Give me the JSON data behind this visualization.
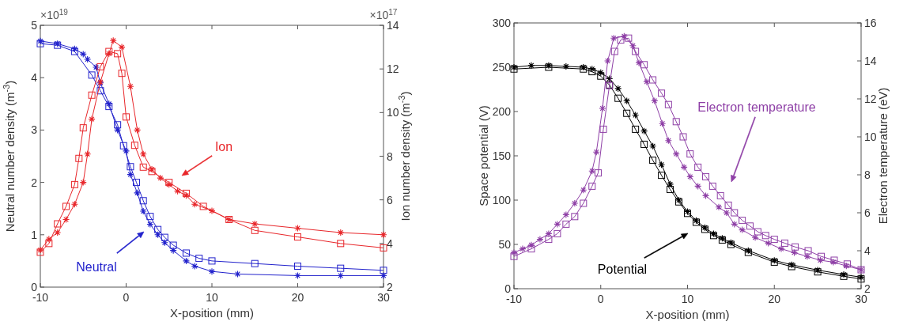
{
  "chart_data": [
    {
      "type": "line",
      "xlabel": "X-position (mm)",
      "ylabel": "Neutral number density (m$^{-3}$)",
      "y2label": "Ion number density (m$^{-3}$)",
      "xlim": [
        -10,
        30
      ],
      "xticks": [
        -10,
        0,
        10,
        20,
        30
      ],
      "ylim": [
        0,
        5
      ],
      "yticks": [
        0,
        1,
        2,
        3,
        4,
        5
      ],
      "y2lim": [
        2,
        14
      ],
      "y2ticks": [
        2,
        4,
        6,
        8,
        10,
        12,
        14
      ],
      "series": [
        {
          "color": "#2222cc",
          "marker": "cross",
          "x": [
            -10,
            -8,
            -6,
            -5,
            -4.5,
            -3.5,
            -3,
            -2,
            -1,
            0,
            0.5,
            1.3,
            2,
            2.8,
            3.7,
            4.5,
            5.5,
            7,
            8,
            10,
            13,
            20,
            25,
            30
          ],
          "values": [
            4.7,
            4.65,
            4.55,
            4.45,
            4.35,
            4.2,
            3.9,
            3.5,
            3.0,
            2.6,
            2.15,
            1.8,
            1.45,
            1.2,
            1.0,
            0.85,
            0.7,
            0.5,
            0.4,
            0.3,
            0.25,
            0.22,
            0.22,
            0.22
          ]
        },
        {
          "color": "#2222cc",
          "marker": "square",
          "x": [
            -10,
            -8,
            -6,
            -4,
            -3,
            -2,
            -1,
            -0.3,
            0.5,
            1.2,
            2,
            2.8,
            3.7,
            4.5,
            5.5,
            7,
            8.5,
            10,
            15,
            20,
            25,
            30
          ],
          "values": [
            4.65,
            4.62,
            4.5,
            4.05,
            3.75,
            3.45,
            3.1,
            2.7,
            2.3,
            2.0,
            1.65,
            1.35,
            1.1,
            0.95,
            0.8,
            0.65,
            0.55,
            0.5,
            0.45,
            0.4,
            0.36,
            0.32
          ]
        },
        {
          "color": "#e8262a",
          "marker": "cross",
          "axis": "y2",
          "x": [
            -10,
            -9,
            -8,
            -7,
            -6,
            -5,
            -4.5,
            -4,
            -3,
            -2,
            -1.5,
            -0.5,
            0.5,
            1.3,
            2,
            3,
            4,
            5,
            6,
            7,
            8,
            10,
            12,
            15,
            20,
            25,
            30
          ],
          "values": [
            3.7,
            4.2,
            4.5,
            5.1,
            5.8,
            6.8,
            8.1,
            9.7,
            11.4,
            12.7,
            13.3,
            13.0,
            11.2,
            9.2,
            8.1,
            7.4,
            7.0,
            6.7,
            6.4,
            6.2,
            5.8,
            5.5,
            5.1,
            4.9,
            4.7,
            4.5,
            4.4
          ]
        },
        {
          "color": "#e8262a",
          "marker": "square",
          "axis": "y2",
          "x": [
            -10,
            -9,
            -8,
            -7,
            -6,
            -5.5,
            -5,
            -4,
            -3,
            -2,
            -1,
            -0.5,
            0,
            1,
            2,
            3,
            5,
            7,
            9,
            12,
            15,
            20,
            25,
            30
          ],
          "values": [
            3.6,
            4.0,
            4.9,
            5.7,
            6.7,
            7.9,
            9.3,
            10.8,
            12.1,
            12.8,
            12.7,
            11.8,
            9.8,
            8.5,
            7.5,
            7.3,
            6.8,
            6.3,
            5.7,
            5.1,
            4.6,
            4.3,
            4.0,
            3.8
          ]
        }
      ],
      "annotations": [
        "Ion",
        "Neutral",
        "×10$^{19}$",
        "×10$^{17}$"
      ]
    },
    {
      "type": "line",
      "xlabel": "X-position (mm)",
      "ylabel": "Space potential (V)",
      "y2label": "Electron temperature (eV)",
      "xlim": [
        -10,
        30
      ],
      "xticks": [
        -10,
        0,
        10,
        20,
        30
      ],
      "ylim": [
        0,
        300
      ],
      "yticks": [
        0,
        50,
        100,
        150,
        200,
        250,
        300
      ],
      "y2lim": [
        2,
        16
      ],
      "y2ticks": [
        2,
        4,
        6,
        8,
        10,
        12,
        14,
        16
      ],
      "series": [
        {
          "color": "#000000",
          "marker": "cross",
          "x": [
            -10,
            -8,
            -6,
            -4,
            -2,
            -1,
            0,
            1,
            2,
            3,
            4,
            5,
            6,
            7,
            8,
            9,
            10,
            11,
            12,
            13,
            14,
            15,
            17,
            20,
            22,
            25,
            28,
            30
          ],
          "values": [
            250,
            252,
            252,
            251,
            250,
            248,
            244,
            237,
            226,
            212,
            196,
            178,
            161,
            140,
            118,
            100,
            87,
            77,
            69,
            62,
            57,
            52,
            43,
            32,
            27,
            21,
            16,
            13
          ]
        },
        {
          "color": "#000000",
          "marker": "square",
          "x": [
            -10,
            -6,
            -2,
            -1,
            0,
            1,
            2,
            3,
            4,
            5,
            6,
            7,
            8,
            9,
            10,
            11,
            12,
            13,
            14,
            15,
            17,
            20,
            22,
            25,
            28,
            30
          ],
          "values": [
            248,
            250,
            248,
            245,
            240,
            230,
            215,
            198,
            180,
            163,
            145,
            128,
            112,
            98,
            85,
            75,
            67,
            60,
            55,
            50,
            41,
            30,
            25,
            19,
            14,
            11
          ]
        },
        {
          "color": "#8e3fa6",
          "marker": "cross",
          "axis": "y2",
          "x": [
            -10,
            -9,
            -8,
            -7,
            -6,
            -5,
            -4,
            -3,
            -2,
            -1,
            -0.5,
            0.2,
            0.8,
            1.5,
            2.7,
            3.7,
            4.4,
            5.3,
            6.2,
            7.1,
            7.8,
            8.7,
            9.6,
            10.3,
            11.2,
            12.1,
            13.6,
            14.5,
            15.4,
            16.3,
            17.8,
            19.3,
            20.8,
            22.3,
            23.8,
            25.3,
            26.8,
            28.3,
            30
          ],
          "values": [
            3.9,
            4.1,
            4.3,
            4.6,
            4.9,
            5.4,
            5.9,
            6.5,
            7.2,
            8.2,
            9.2,
            11.5,
            14.0,
            15.2,
            15.3,
            14.8,
            13.9,
            12.9,
            11.9,
            10.7,
            9.8,
            9.1,
            8.4,
            7.9,
            7.4,
            6.9,
            6.3,
            6.0,
            5.4,
            5.1,
            4.7,
            4.4,
            4.1,
            3.9,
            3.7,
            3.5,
            3.4,
            3.2,
            3.0
          ]
        },
        {
          "color": "#8e3fa6",
          "marker": "square",
          "axis": "y2",
          "x": [
            -10,
            -8,
            -6,
            -5,
            -4,
            -3,
            -2,
            -1,
            -0.3,
            0.3,
            1,
            1.6,
            2.3,
            3.2,
            4,
            5,
            6,
            7,
            7.8,
            8.7,
            9.5,
            10.3,
            11.2,
            12.1,
            12.9,
            13.8,
            14.7,
            15.4,
            16.3,
            17.2,
            18.1,
            19,
            20,
            21.2,
            22.4,
            23.9,
            25.4,
            26.9,
            28.4,
            30
          ],
          "values": [
            3.7,
            4.1,
            4.6,
            4.9,
            5.4,
            5.8,
            6.5,
            7.4,
            8.1,
            10.4,
            12.7,
            14.5,
            15.1,
            15.2,
            14.5,
            13.8,
            13.0,
            12.3,
            11.7,
            10.8,
            10.0,
            9.1,
            8.4,
            7.9,
            7.4,
            6.9,
            6.4,
            6.0,
            5.6,
            5.3,
            5.0,
            4.8,
            4.6,
            4.4,
            4.2,
            4.0,
            3.7,
            3.5,
            3.3,
            3.0
          ]
        }
      ],
      "annotations": [
        "Potential",
        "Electron temperature"
      ]
    }
  ]
}
